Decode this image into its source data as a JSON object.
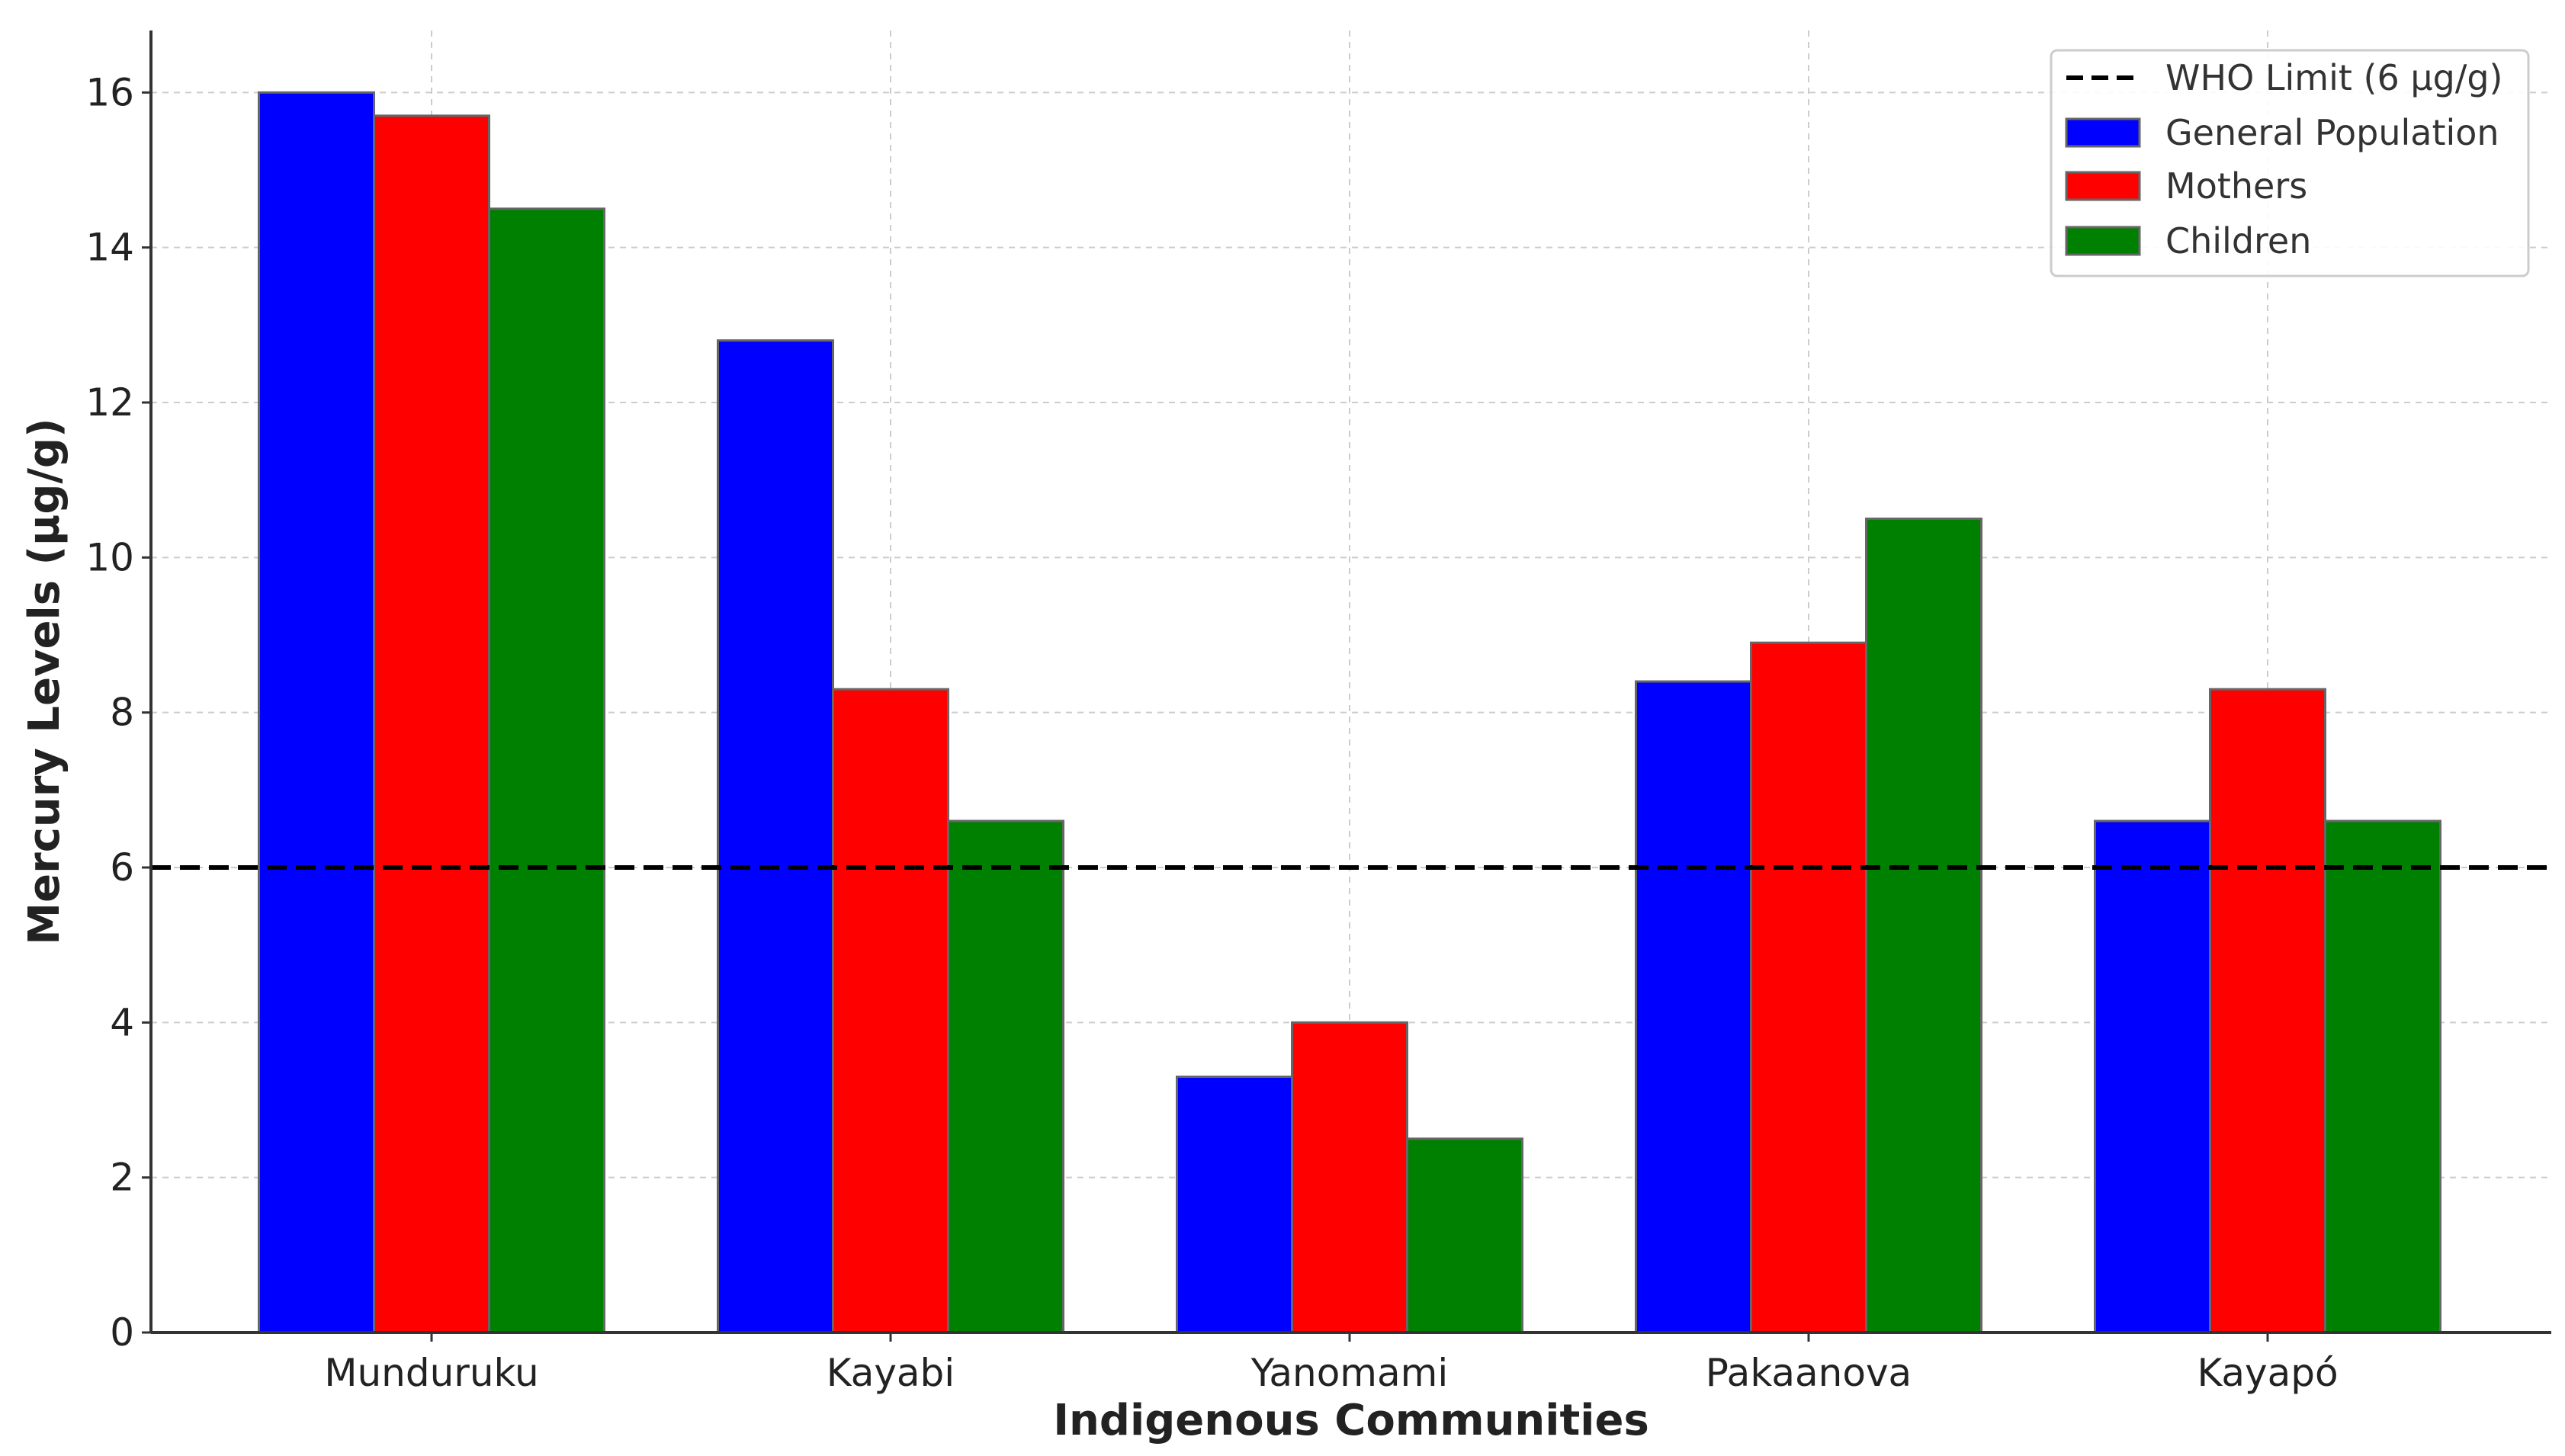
{
  "chart_data": {
    "type": "bar",
    "title": "",
    "xlabel": "Indigenous Communities",
    "ylabel": "Mercury Levels (µg/g)",
    "ylim": [
      0,
      16.8
    ],
    "yticks": [
      0,
      2,
      4,
      6,
      8,
      10,
      12,
      14,
      16
    ],
    "grid": true,
    "legend_position": "top-right",
    "categories": [
      "Munduruku",
      "Kayabi",
      "Yanomami",
      "Pakaanova",
      "Kayapó"
    ],
    "series": [
      {
        "name": "General Population",
        "color": "#0000ff",
        "values": [
          16.0,
          12.8,
          3.3,
          8.4,
          6.6
        ]
      },
      {
        "name": "Mothers",
        "color": "#ff0000",
        "values": [
          15.7,
          8.3,
          4.0,
          8.9,
          8.3
        ]
      },
      {
        "name": "Children",
        "color": "#008000",
        "values": [
          14.5,
          6.6,
          2.5,
          10.5,
          6.6
        ]
      }
    ],
    "reference_line": {
      "label": "WHO Limit (6 µg/g)",
      "value": 6,
      "color": "#000000",
      "style": "dashed"
    }
  }
}
